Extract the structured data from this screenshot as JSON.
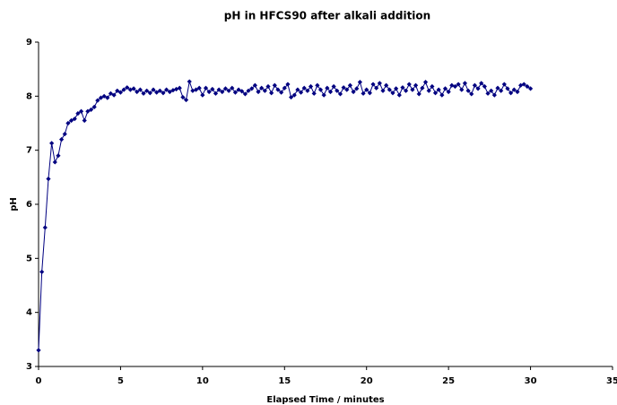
{
  "chart_data": {
    "type": "line",
    "title": "pH in HFCS90 after alkali addition",
    "x_label": "Elapsed Time / minutes",
    "y_label": "pH",
    "xlim": [
      0,
      35
    ],
    "xticks": [
      0,
      5,
      10,
      15,
      20,
      25,
      30,
      35
    ],
    "ylim": [
      3,
      9
    ],
    "yticks": [
      3,
      4,
      5,
      6,
      7,
      8,
      9
    ],
    "grid": false,
    "x": [
      0,
      0.2,
      0.4,
      0.6,
      0.8,
      1,
      1.2,
      1.4,
      1.6,
      1.8,
      2,
      2.2,
      2.4,
      2.6,
      2.8,
      3,
      3.2,
      3.4,
      3.6,
      3.8,
      4,
      4.2,
      4.4,
      4.6,
      4.8,
      5,
      5.2,
      5.4,
      5.6,
      5.8,
      6,
      6.2,
      6.4,
      6.6,
      6.8,
      7,
      7.2,
      7.4,
      7.6,
      7.8,
      8,
      8.2,
      8.4,
      8.6,
      8.8,
      9,
      9.2,
      9.4,
      9.6,
      9.8,
      10,
      10.2,
      10.4,
      10.6,
      10.8,
      11,
      11.2,
      11.4,
      11.6,
      11.8,
      12,
      12.2,
      12.4,
      12.6,
      12.8,
      13,
      13.2,
      13.4,
      13.6,
      13.8,
      14,
      14.2,
      14.4,
      14.6,
      14.8,
      15,
      15.2,
      15.4,
      15.6,
      15.8,
      16,
      16.2,
      16.4,
      16.6,
      16.8,
      17,
      17.2,
      17.4,
      17.6,
      17.8,
      18,
      18.2,
      18.4,
      18.6,
      18.8,
      19,
      19.2,
      19.4,
      19.6,
      19.8,
      20,
      20.2,
      20.4,
      20.6,
      20.8,
      21,
      21.2,
      21.4,
      21.6,
      21.8,
      22,
      22.2,
      22.4,
      22.6,
      22.8,
      23,
      23.2,
      23.4,
      23.6,
      23.8,
      24,
      24.2,
      24.4,
      24.6,
      24.8,
      25,
      25.2,
      25.4,
      25.6,
      25.8,
      26,
      26.2,
      26.4,
      26.6,
      26.8,
      27,
      27.2,
      27.4,
      27.6,
      27.8,
      28,
      28.2,
      28.4,
      28.6,
      28.8,
      29,
      29.2,
      29.4,
      29.6,
      29.8,
      30
    ],
    "series": [
      {
        "color": "#000080",
        "values": [
          3.3,
          4.75,
          5.57,
          6.47,
          7.13,
          6.78,
          6.9,
          7.2,
          7.3,
          7.5,
          7.55,
          7.58,
          7.68,
          7.72,
          7.55,
          7.72,
          7.75,
          7.8,
          7.92,
          7.97,
          8.0,
          7.97,
          8.05,
          8.02,
          8.1,
          8.07,
          8.12,
          8.16,
          8.12,
          8.14,
          8.08,
          8.12,
          8.05,
          8.1,
          8.06,
          8.12,
          8.07,
          8.1,
          8.06,
          8.12,
          8.08,
          8.11,
          8.13,
          8.15,
          7.98,
          7.93,
          8.27,
          8.1,
          8.12,
          8.15,
          8.02,
          8.15,
          8.08,
          8.13,
          8.05,
          8.12,
          8.08,
          8.14,
          8.1,
          8.15,
          8.07,
          8.12,
          8.09,
          8.04,
          8.1,
          8.14,
          8.2,
          8.08,
          8.15,
          8.1,
          8.18,
          8.06,
          8.2,
          8.12,
          8.07,
          8.15,
          8.22,
          7.98,
          8.02,
          8.12,
          8.07,
          8.15,
          8.1,
          8.18,
          8.05,
          8.2,
          8.12,
          8.02,
          8.15,
          8.08,
          8.18,
          8.1,
          8.04,
          8.16,
          8.12,
          8.2,
          8.08,
          8.14,
          8.26,
          8.05,
          8.12,
          8.06,
          8.22,
          8.15,
          8.24,
          8.1,
          8.2,
          8.12,
          8.06,
          8.14,
          8.02,
          8.16,
          8.1,
          8.22,
          8.12,
          8.2,
          8.04,
          8.15,
          8.26,
          8.1,
          8.18,
          8.06,
          8.12,
          8.02,
          8.14,
          8.08,
          8.2,
          8.18,
          8.22,
          8.12,
          8.24,
          8.1,
          8.04,
          8.2,
          8.14,
          8.24,
          8.18,
          8.05,
          8.1,
          8.02,
          8.15,
          8.1,
          8.22,
          8.14,
          8.06,
          8.12,
          8.08,
          8.2,
          8.22,
          8.18,
          8.14
        ]
      }
    ]
  }
}
